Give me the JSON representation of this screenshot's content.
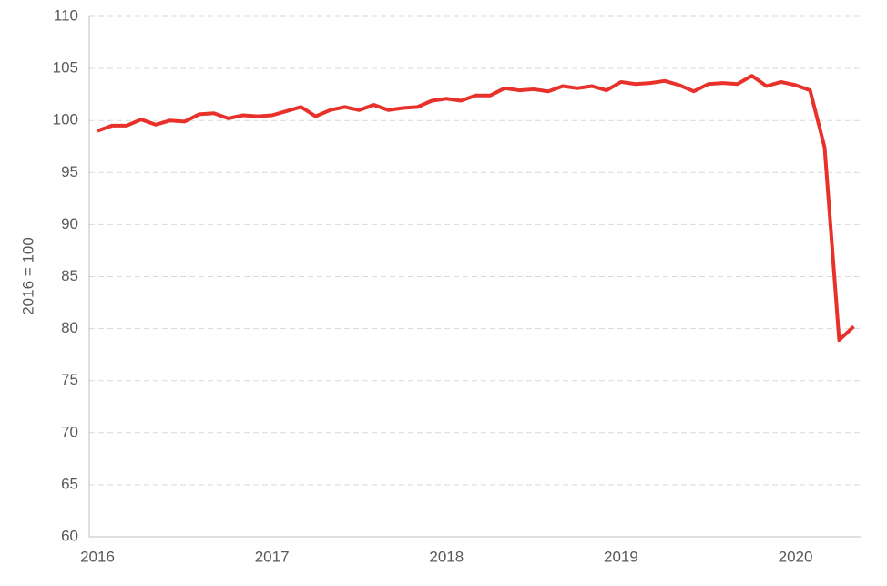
{
  "chart_data": {
    "type": "line",
    "y_label": "2016 = 100",
    "categories": [
      "2016",
      null,
      null,
      null,
      null,
      null,
      null,
      null,
      null,
      null,
      null,
      null,
      "2017",
      null,
      null,
      null,
      null,
      null,
      null,
      null,
      null,
      null,
      null,
      null,
      "2018",
      null,
      null,
      null,
      null,
      null,
      null,
      null,
      null,
      null,
      null,
      null,
      "2019",
      null,
      null,
      null,
      null,
      null,
      null,
      null,
      null,
      null,
      null,
      null,
      "2020",
      null,
      null,
      null,
      null
    ],
    "series": [
      {
        "color": "#e8312a",
        "values": [
          99.0,
          99.5,
          99.5,
          100.1,
          99.6,
          100.0,
          99.9,
          100.6,
          100.7,
          100.2,
          100.5,
          100.4,
          100.5,
          100.9,
          101.3,
          100.4,
          101.0,
          101.3,
          101.0,
          101.5,
          101.0,
          101.2,
          101.3,
          101.9,
          102.1,
          101.9,
          102.4,
          102.4,
          103.1,
          102.9,
          103.0,
          102.8,
          103.3,
          103.1,
          103.3,
          102.9,
          103.7,
          103.5,
          103.6,
          103.8,
          103.4,
          102.8,
          103.5,
          103.6,
          103.5,
          104.3,
          103.3,
          103.7,
          103.4,
          102.9,
          97.4,
          78.9,
          80.2
        ]
      }
    ],
    "ylim": [
      60,
      110
    ],
    "yticks": [
      60,
      65,
      70,
      75,
      80,
      85,
      90,
      95,
      100,
      105,
      110
    ],
    "grid": true
  }
}
